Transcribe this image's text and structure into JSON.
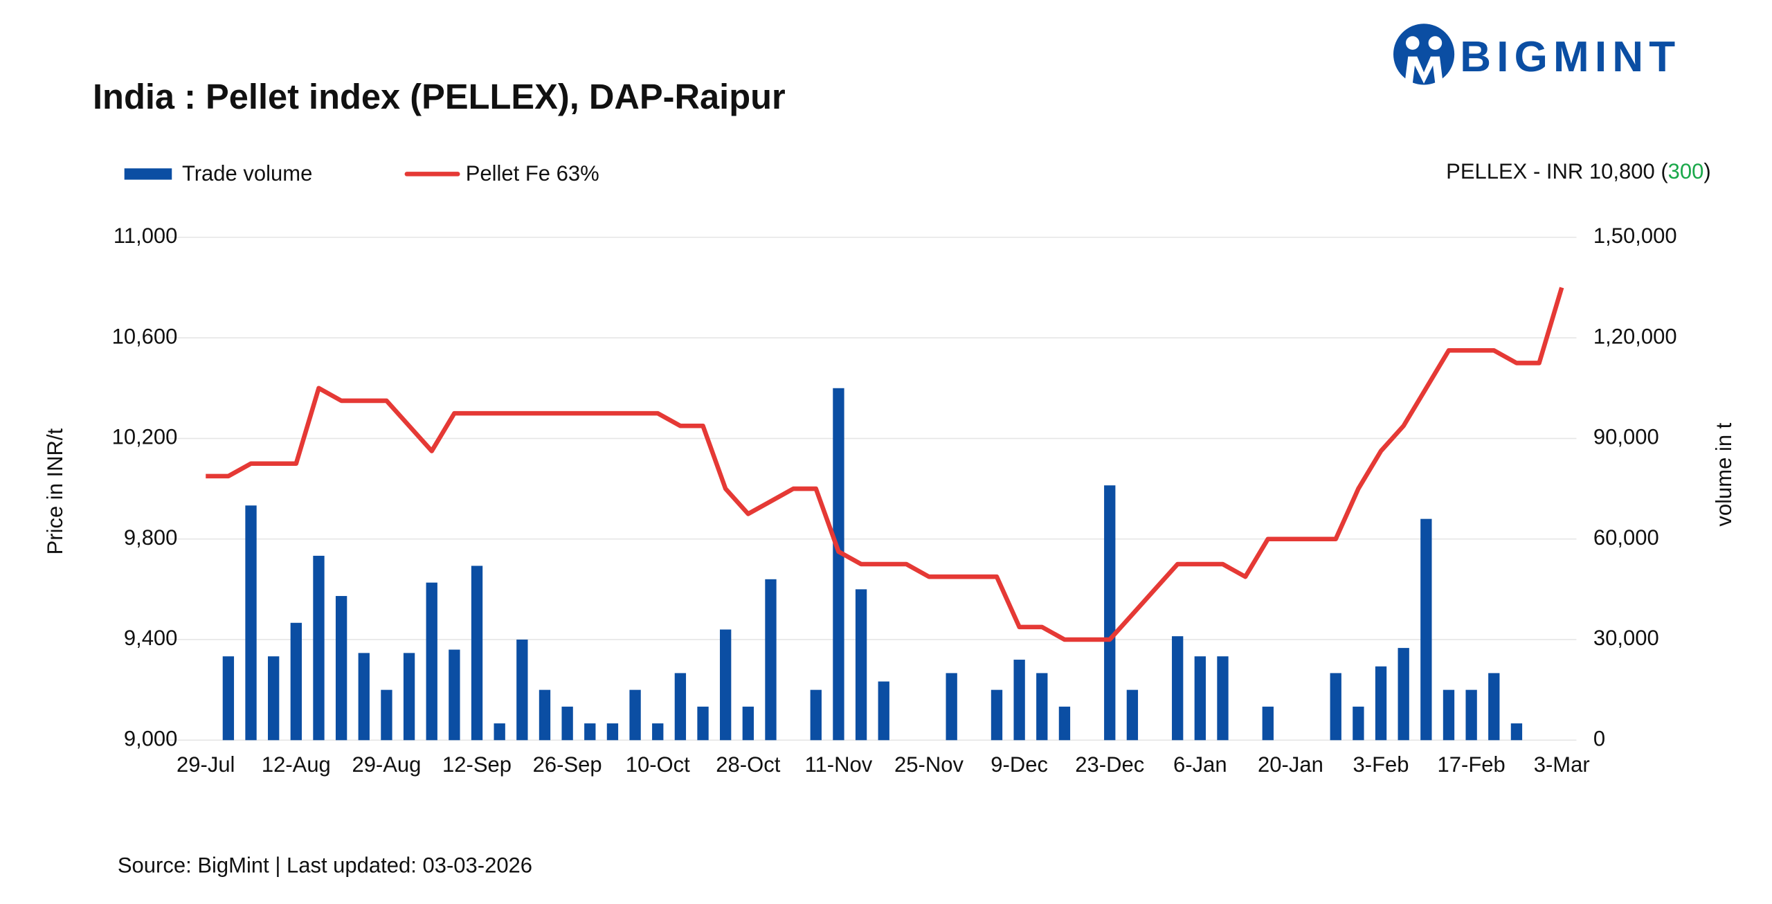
{
  "chart_data": {
    "type": "combo",
    "title": "India : Pellet index (PELLEX), DAP-Raipur",
    "logo": "BIGMINT",
    "annotation": {
      "prefix": "PELLEX - INR 10,800 (",
      "change": "300",
      "suffix": ")",
      "change_color": "#1aa84a"
    },
    "y_label": "Price in INR/t",
    "y2_label": "volume in t",
    "source": "Source: BigMint | Last updated: 03-03-2026",
    "categories": [
      "29-Jul",
      null,
      null,
      null,
      "12-Aug",
      null,
      null,
      null,
      "29-Aug",
      null,
      null,
      null,
      "12-Sep",
      null,
      null,
      null,
      "26-Sep",
      null,
      null,
      null,
      "10-Oct",
      null,
      null,
      null,
      "28-Oct",
      null,
      null,
      null,
      "11-Nov",
      null,
      null,
      null,
      "25-Nov",
      null,
      null,
      null,
      "9-Dec",
      null,
      null,
      null,
      "23-Dec",
      null,
      null,
      null,
      "6-Jan",
      null,
      null,
      null,
      "20-Jan",
      null,
      null,
      null,
      "3-Feb",
      null,
      null,
      null,
      "17-Feb",
      null,
      null,
      null,
      "3-Mar"
    ],
    "series": [
      {
        "name": "Trade volume",
        "color": "#0b4ea3",
        "type": "bar",
        "axis": "y2",
        "values": [
          null,
          25000,
          70000,
          25000,
          35000,
          55000,
          43000,
          26000,
          15000,
          26000,
          47000,
          27000,
          52000,
          5000,
          30000,
          15000,
          10000,
          5000,
          5000,
          15000,
          5000,
          20000,
          10000,
          33000,
          10000,
          48000,
          null,
          15000,
          105000,
          45000,
          17500,
          null,
          null,
          20000,
          null,
          15000,
          24000,
          20000,
          10000,
          null,
          76000,
          15000,
          null,
          31000,
          25000,
          25000,
          null,
          10000,
          null,
          null,
          20000,
          10000,
          22000,
          27500,
          66000,
          15000,
          15000,
          20000,
          5000,
          null,
          null
        ]
      },
      {
        "name": "Pellet Fe 63%",
        "color": "#e53935",
        "type": "line",
        "values": [
          10050,
          10050,
          10100,
          10100,
          10100,
          10400,
          10350,
          10350,
          10350,
          10250,
          10150,
          10300,
          10300,
          10300,
          10300,
          10300,
          10300,
          10300,
          10300,
          10300,
          10300,
          10250,
          10250,
          10000,
          9900,
          9950,
          10000,
          10000,
          9750,
          9700,
          9700,
          9700,
          9650,
          9650,
          9650,
          9650,
          9450,
          9450,
          9400,
          9400,
          9400,
          9500,
          9600,
          9700,
          9700,
          9700,
          9650,
          9800,
          9800,
          9800,
          9800,
          10000,
          10150,
          10250,
          10400,
          10550,
          10550,
          10550,
          10500,
          10500,
          10800
        ]
      }
    ],
    "ylim": [
      9000,
      11000
    ],
    "yticks": [
      {
        "value": 9000,
        "label": "9,000"
      },
      {
        "value": 9400,
        "label": "9,400"
      },
      {
        "value": 9800,
        "label": "9,800"
      },
      {
        "value": 10200,
        "label": "10,200"
      },
      {
        "value": 10600,
        "label": "10,600"
      },
      {
        "value": 11000,
        "label": "11,000"
      }
    ],
    "y2lim": [
      0,
      150000
    ],
    "y2ticks": [
      0,
      {
        "value": 30000,
        "label": "30,000"
      },
      {
        "value": 60000,
        "label": "60,000"
      },
      {
        "value": 90000,
        "label": "90,000"
      },
      {
        "value": 120000,
        "label": "1,20,000"
      },
      {
        "value": 150000,
        "label": "1,50,000"
      }
    ],
    "grid": true,
    "legend": "top-left"
  }
}
